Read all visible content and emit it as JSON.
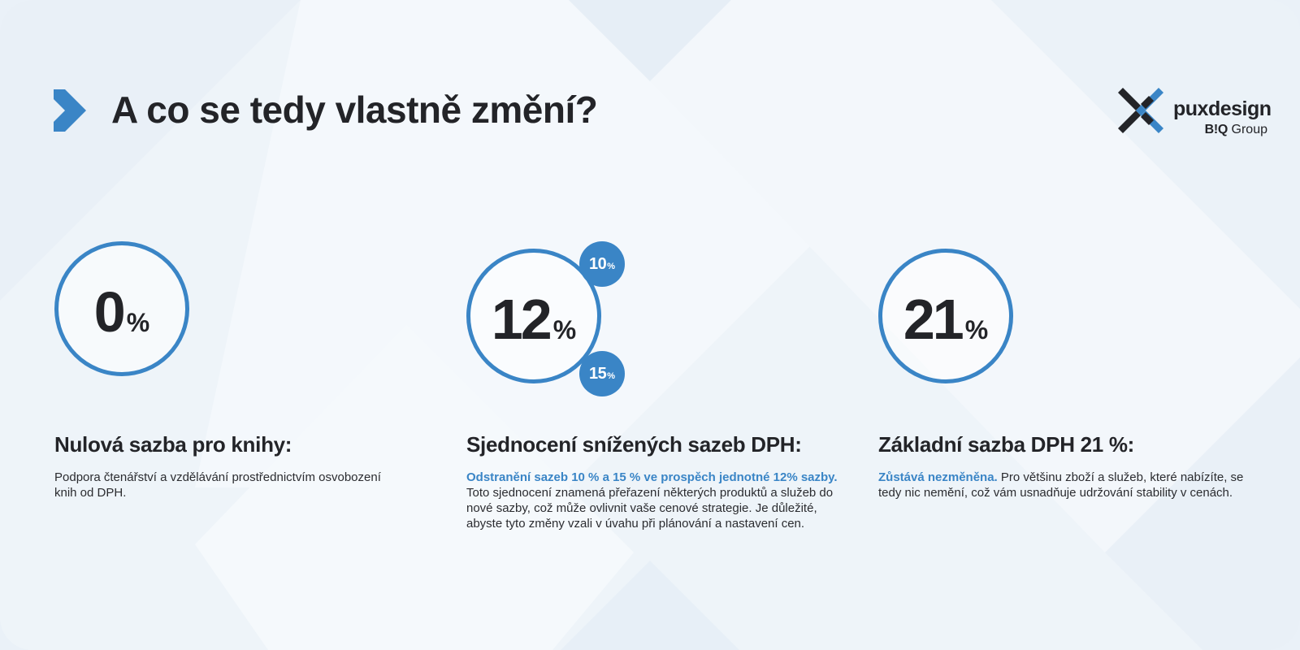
{
  "header": {
    "title": "A co se tedy vlastně změní?"
  },
  "logo": {
    "name": "puxdesign",
    "group_prefix": "B!Q",
    "group_suffix": "Group"
  },
  "colors": {
    "accent": "#3a85c6",
    "text": "#232428",
    "background": "#eef4f9"
  },
  "icons": {
    "title_marker": "chevron-right-icon",
    "logo_mark": "x-mark-logo"
  },
  "rates": [
    {
      "value": "0",
      "unit": "%",
      "heading": "Nulová sazba pro knihy:",
      "highlight": "",
      "text": "Podpora čtenářství a vzdělávání prostřednictvím osvobození knih od DPH."
    },
    {
      "value": "12",
      "unit": "%",
      "badges": [
        {
          "value": "10",
          "unit": "%"
        },
        {
          "value": "15",
          "unit": "%"
        }
      ],
      "heading": "Sjednocení snížených sazeb DPH:",
      "highlight": "Odstranění sazeb 10 % a 15 % ve prospěch jednotné 12% sazby.",
      "text": "Toto sjednocení znamená přeřazení některých produktů a služeb do nové sazby, což může ovlivnit vaše cenové strategie. Je důležité, abyste tyto změny vzali v úvahu při plánování a nastavení cen."
    },
    {
      "value": "21",
      "unit": "%",
      "heading": "Základní sazba DPH 21 %:",
      "highlight": "Zůstává nezměněna.",
      "text": "Pro většinu zboží a služeb, které nabízíte, se tedy nic nemění, což vám usnadňuje udržování stability v cenách."
    }
  ]
}
